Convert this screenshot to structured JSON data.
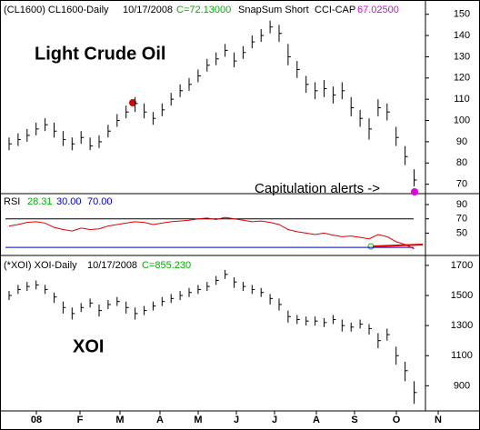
{
  "chart_data": [
    {
      "type": "hlc",
      "header": [
        "(CL1600) CL1600-Daily",
        "10/17/2008",
        "C=72.13000",
        "SnapSum Short",
        "CCI-CAP",
        "67.02500"
      ],
      "title": "Light Crude Oil",
      "annotation": "Capitulation alerts ->",
      "high": [
        92,
        94,
        96,
        99,
        101,
        99,
        95,
        92,
        95,
        92,
        93,
        98,
        103,
        107,
        111,
        108,
        104,
        108,
        113,
        117,
        120,
        124,
        129,
        132,
        136,
        132,
        135,
        140,
        143,
        147,
        145,
        136,
        128,
        121,
        118,
        119,
        116,
        118,
        111,
        105,
        101,
        110,
        108,
        97,
        88,
        77
      ],
      "low": [
        86,
        88,
        90,
        93,
        95,
        92,
        88,
        86,
        89,
        86,
        87,
        92,
        97,
        101,
        104,
        101,
        98,
        102,
        107,
        111,
        114,
        118,
        123,
        126,
        130,
        125,
        129,
        134,
        137,
        141,
        137,
        126,
        120,
        113,
        110,
        111,
        108,
        110,
        102,
        97,
        91,
        102,
        100,
        88,
        79,
        69
      ],
      "close": [
        89,
        91,
        93,
        96,
        98,
        95,
        91,
        89,
        92,
        88,
        90,
        95,
        100,
        104,
        108,
        104,
        101,
        105,
        110,
        114,
        117,
        121,
        126,
        129,
        133,
        128,
        132,
        137,
        140,
        144,
        141,
        130,
        124,
        117,
        114,
        115,
        112,
        114,
        106,
        101,
        96,
        106,
        104,
        92,
        83,
        72
      ],
      "ylim": [
        66,
        155
      ],
      "yticks": [
        70,
        80,
        90,
        100,
        110,
        120,
        130,
        140,
        150
      ],
      "color": "#000000"
    },
    {
      "type": "line",
      "header": [
        "RSI",
        "28.31",
        "30.00",
        "70.00"
      ],
      "values": [
        60,
        62,
        65,
        66,
        64,
        58,
        55,
        53,
        57,
        55,
        56,
        60,
        62,
        64,
        66,
        65,
        62,
        64,
        66,
        67,
        68,
        70,
        71,
        69,
        72,
        70,
        68,
        66,
        67,
        65,
        62,
        55,
        52,
        50,
        48,
        50,
        47,
        45,
        46,
        44,
        42,
        48,
        45,
        38,
        34,
        28
      ],
      "ylim": [
        20,
        104
      ],
      "yticks": [
        50,
        70,
        90
      ],
      "levels": [
        30,
        70
      ],
      "color": "#e00000"
    },
    {
      "type": "hlc",
      "header": [
        "(*XOI) XOI-Daily",
        "10/17/2008",
        "C=855.230"
      ],
      "title": "XOI",
      "high": [
        1530,
        1570,
        1590,
        1600,
        1570,
        1520,
        1460,
        1420,
        1450,
        1480,
        1440,
        1470,
        1490,
        1460,
        1420,
        1430,
        1460,
        1490,
        1510,
        1530,
        1550,
        1570,
        1590,
        1630,
        1670,
        1620,
        1590,
        1570,
        1550,
        1510,
        1480,
        1400,
        1370,
        1360,
        1360,
        1350,
        1370,
        1340,
        1320,
        1340,
        1310,
        1250,
        1280,
        1160,
        1060,
        930
      ],
      "low": [
        1470,
        1510,
        1530,
        1540,
        1510,
        1450,
        1380,
        1340,
        1390,
        1420,
        1360,
        1410,
        1430,
        1380,
        1340,
        1370,
        1400,
        1430,
        1450,
        1470,
        1490,
        1510,
        1530,
        1570,
        1610,
        1550,
        1530,
        1510,
        1490,
        1440,
        1400,
        1320,
        1310,
        1300,
        1300,
        1290,
        1310,
        1260,
        1260,
        1280,
        1240,
        1150,
        1200,
        1040,
        930,
        780
      ],
      "close": [
        1500,
        1540,
        1560,
        1570,
        1540,
        1490,
        1420,
        1380,
        1420,
        1450,
        1400,
        1440,
        1460,
        1420,
        1380,
        1400,
        1430,
        1460,
        1480,
        1500,
        1520,
        1540,
        1560,
        1600,
        1640,
        1590,
        1560,
        1540,
        1520,
        1480,
        1440,
        1360,
        1340,
        1330,
        1330,
        1320,
        1340,
        1300,
        1290,
        1310,
        1280,
        1200,
        1240,
        1100,
        1000,
        855
      ],
      "ylim": [
        745,
        1760
      ],
      "yticks": [
        900,
        1100,
        1300,
        1500,
        1700
      ],
      "color": "#000000",
      "categories": [
        "08",
        "F",
        "M",
        "A",
        "M",
        "J",
        "J",
        "A",
        "S",
        "O",
        "N"
      ]
    }
  ]
}
